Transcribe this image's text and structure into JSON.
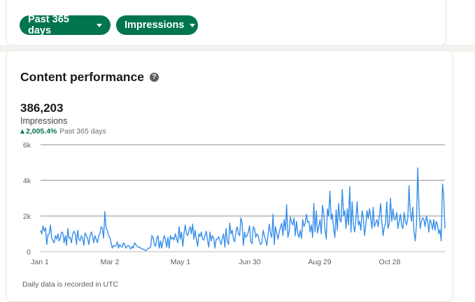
{
  "filters": {
    "range_label": "Past 365 days",
    "metric_label": "Impressions"
  },
  "card": {
    "title": "Content performance",
    "help_icon": "?",
    "total": "386,203",
    "total_label": "Impressions",
    "delta": "2,005.4%",
    "delta_suffix": "Past 365 days",
    "footnote": "Daily data is recorded in UTC"
  },
  "colors": {
    "accent": "#01754f",
    "line": "#378fe9"
  },
  "chart_data": {
    "type": "line",
    "y_ticks": [
      "0",
      "2k",
      "4k",
      "6k"
    ],
    "ylim": [
      0,
      6000
    ],
    "x_tick_labels": [
      "Jan 1",
      "Mar 2",
      "May 1",
      "Jun 30",
      "Aug 29",
      "Oct 28"
    ],
    "grid": true,
    "series": [
      {
        "values": [
          1200,
          1000,
          1450,
          1150,
          1350,
          400,
          950,
          1000,
          1500,
          750,
          600,
          500,
          900,
          700,
          1000,
          600,
          800,
          1100,
          1050,
          500,
          900,
          350,
          1300,
          750,
          800,
          500,
          1000,
          1150,
          1000,
          400,
          1200,
          700,
          600,
          900,
          750,
          350,
          1050,
          900,
          750,
          400,
          900,
          1100,
          900,
          500,
          900,
          700,
          500,
          900,
          1000,
          1400,
          1300,
          750,
          2250,
          1300,
          1200,
          900,
          800,
          500,
          200,
          350,
          300,
          350,
          550,
          200,
          400,
          300,
          250,
          500,
          400,
          200,
          300,
          350,
          250,
          150,
          300,
          200,
          500,
          400,
          300,
          250,
          250,
          200,
          150,
          150,
          100,
          50,
          100,
          200,
          200,
          250,
          900,
          800,
          400,
          300,
          750,
          900,
          200,
          600,
          200,
          600,
          900,
          700,
          250,
          800,
          200,
          900,
          700,
          800,
          650,
          1000,
          750,
          500,
          1400,
          700,
          1100,
          300,
          1000,
          1500,
          1000,
          900,
          1200,
          1400,
          1000,
          1550,
          700,
          1200,
          700,
          300,
          1000,
          850,
          1100,
          700,
          650,
          900,
          1150,
          650,
          250,
          1100,
          600,
          900,
          750,
          200,
          700,
          700,
          850,
          600,
          400,
          750,
          1000,
          250,
          1300,
          600,
          400,
          1600,
          1000,
          1200,
          700,
          550,
          1150,
          1400,
          1000,
          900,
          1900,
          1600,
          350,
          1100,
          800,
          900,
          1100,
          1450,
          550,
          450,
          1400,
          1300,
          800,
          1000,
          900,
          550,
          400,
          500,
          1200,
          900,
          650,
          350,
          1000,
          1550,
          1000,
          800,
          2100,
          400,
          1400,
          1050,
          700,
          1100,
          1350,
          1600,
          900,
          1800,
          1200,
          2650,
          800,
          1100,
          1950,
          1650,
          1500,
          1900,
          900,
          1700,
          1000,
          800,
          1200,
          750,
          1800,
          1400,
          1600,
          2100,
          1650,
          1700,
          1100,
          1500,
          800,
          2700,
          1100,
          2300,
          1050,
          1400,
          1800,
          1000,
          2600,
          2100,
          1300,
          700,
          2400,
          2000,
          3400,
          1800,
          2100,
          1300,
          800,
          2350,
          1200,
          2700,
          1800,
          1650,
          3500,
          2000,
          2300,
          1300,
          2400,
          1500,
          3650,
          1100,
          2800,
          1500,
          1100,
          1800,
          2800,
          1500,
          1700,
          1200,
          2300,
          1900,
          900,
          1500,
          2300,
          1850,
          2400,
          1900,
          1300,
          2500,
          1400,
          1600,
          1800,
          1400,
          2000,
          2700,
          1600,
          900,
          1400,
          1600,
          2800,
          1300,
          1600,
          3000,
          1700,
          2400,
          1800,
          1800,
          2200,
          1300,
          1700,
          2100,
          1500,
          1300,
          2200,
          1700,
          1500,
          1900,
          3700,
          2200,
          1700,
          2500,
          1100,
          600,
          1500,
          4700,
          2500,
          1300,
          1700,
          1900,
          1800,
          1400,
          2000,
          1700,
          1100,
          1800,
          1600,
          1250,
          1800,
          1200,
          1700,
          1500,
          1000,
          1250,
          600,
          3800,
          3200,
          1300
        ]
      }
    ]
  }
}
